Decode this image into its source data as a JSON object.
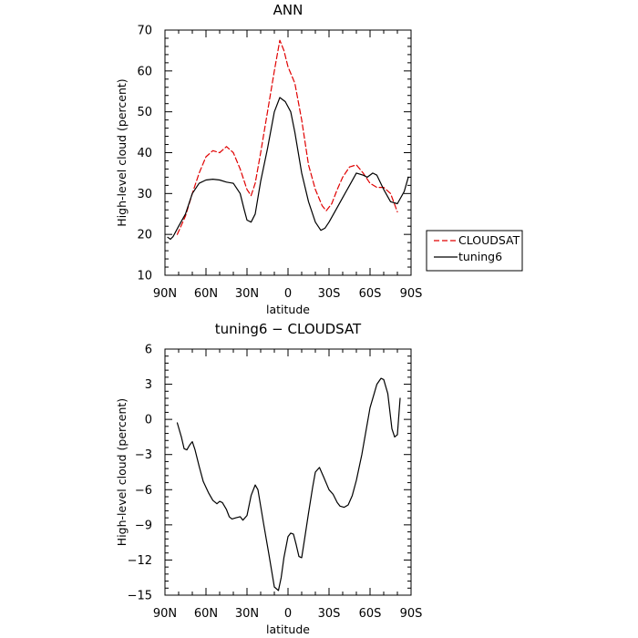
{
  "chart_data": [
    {
      "type": "line",
      "title": "ANN",
      "xlabel": "latitude",
      "ylabel": "High-level cloud (percent)",
      "xlim": [
        90,
        -90
      ],
      "ylim": [
        10,
        70
      ],
      "x_ticks": [
        {
          "value": 90,
          "label": "90N"
        },
        {
          "value": 60,
          "label": "60N"
        },
        {
          "value": 30,
          "label": "30N"
        },
        {
          "value": 0,
          "label": "0"
        },
        {
          "value": -30,
          "label": "30S"
        },
        {
          "value": -60,
          "label": "60S"
        },
        {
          "value": -90,
          "label": "90S"
        }
      ],
      "y_ticks": [
        10,
        20,
        30,
        40,
        50,
        60,
        70
      ],
      "legend_position": "right-outside",
      "series": [
        {
          "name": "CLOUDSAT",
          "color": "#e00000",
          "dash": "dashed",
          "x": [
            81,
            75,
            70,
            65,
            60,
            55,
            50,
            45,
            40,
            35,
            30,
            27,
            24,
            20,
            15,
            10,
            6,
            3,
            0,
            -5,
            -10,
            -15,
            -20,
            -25,
            -28,
            -32,
            -36,
            -40,
            -45,
            -50,
            -55,
            -60,
            -65,
            -70,
            -75,
            -80
          ],
          "y": [
            20,
            24.5,
            30,
            35,
            39,
            40.5,
            40,
            41.5,
            40,
            36,
            31,
            29.5,
            32.5,
            40,
            50,
            60,
            67.5,
            65,
            61,
            57,
            48,
            37,
            31,
            27,
            25.8,
            27.5,
            31,
            34,
            36.5,
            37,
            35,
            32.5,
            31.5,
            31.5,
            30,
            25.5
          ]
        },
        {
          "name": "tuning6",
          "color": "#000000",
          "dash": "solid",
          "x": [
            88,
            86,
            84,
            80,
            75,
            70,
            65,
            60,
            55,
            50,
            45,
            40,
            35,
            32,
            30,
            27,
            24,
            20,
            15,
            10,
            6,
            2,
            -2,
            -5,
            -10,
            -15,
            -20,
            -24,
            -27,
            -30,
            -35,
            -40,
            -45,
            -50,
            -55,
            -58,
            -62,
            -65,
            -70,
            -75,
            -80,
            -85,
            -88
          ],
          "y": [
            19.3,
            18.8,
            19.5,
            22,
            25,
            30,
            32.5,
            33.3,
            33.5,
            33.3,
            32.8,
            32.5,
            30,
            26,
            23.5,
            23,
            25,
            33,
            41,
            50,
            53.5,
            52.5,
            50,
            45,
            35,
            28,
            23,
            21,
            21.5,
            23,
            26,
            29,
            32,
            35,
            34.5,
            34,
            35,
            34.5,
            31,
            28,
            27.5,
            30.5,
            34
          ]
        }
      ]
    },
    {
      "type": "line",
      "title": "tuning6 − CLOUDSAT",
      "xlabel": "latitude",
      "ylabel": "High-level cloud (percent)",
      "xlim": [
        90,
        -90
      ],
      "ylim": [
        -15,
        6
      ],
      "x_ticks": [
        {
          "value": 90,
          "label": "90N"
        },
        {
          "value": 60,
          "label": "60N"
        },
        {
          "value": 30,
          "label": "30N"
        },
        {
          "value": 0,
          "label": "0"
        },
        {
          "value": -30,
          "label": "30S"
        },
        {
          "value": -60,
          "label": "60S"
        },
        {
          "value": -90,
          "label": "90S"
        }
      ],
      "y_ticks": [
        -15,
        -12,
        -9,
        -6,
        -3,
        0,
        3,
        6
      ],
      "series": [
        {
          "color": "#000000",
          "dash": "solid",
          "x": [
            81,
            78,
            76,
            74,
            72,
            70,
            68,
            65,
            62,
            58,
            55,
            52,
            50,
            48,
            45,
            43,
            41,
            38,
            35,
            33,
            30,
            27,
            24,
            22,
            18,
            14,
            10,
            7,
            5,
            3,
            0,
            -2,
            -4,
            -6,
            -8,
            -10,
            -12,
            -15,
            -18,
            -20,
            -23,
            -26,
            -30,
            -33,
            -36,
            -38,
            -41,
            -44,
            -47,
            -50,
            -54,
            -57,
            -60,
            -63,
            -65,
            -68,
            -70,
            -73,
            -76,
            -78,
            -80
          ],
          "y": [
            -0.3,
            -1.5,
            -2.5,
            -2.6,
            -2.2,
            -1.9,
            -2.6,
            -4,
            -5.3,
            -6.3,
            -6.9,
            -7.2,
            -7.0,
            -7.1,
            -7.7,
            -8.3,
            -8.5,
            -8.4,
            -8.3,
            -8.6,
            -8.2,
            -6.5,
            -5.6,
            -6,
            -8.8,
            -11.5,
            -14.3,
            -14.6,
            -13.5,
            -11.8,
            -10,
            -9.7,
            -9.8,
            -10.7,
            -11.7,
            -11.8,
            -10.3,
            -8,
            -5.8,
            -4.5,
            -4.1,
            -4.9,
            -6.0,
            -6.4,
            -7.1,
            -7.4,
            -7.5,
            -7.3,
            -6.5,
            -5.2,
            -3,
            -1,
            1.0,
            2.2,
            3.0,
            3.5,
            3.4,
            2.2,
            -0.8,
            -1.5,
            -1.3
          ]
        },
        {
          "color": "#000000",
          "dash": "solid",
          "x": [
            -80,
            -82
          ],
          "y": [
            -1.3,
            1.8
          ]
        }
      ]
    }
  ]
}
